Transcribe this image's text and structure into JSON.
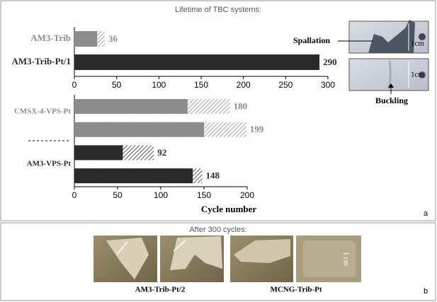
{
  "title": "Lifetime of TBC systems:",
  "panel_a": "a",
  "chart_data": [
    {
      "type": "bar",
      "orientation": "horizontal",
      "categories": [
        "AM3-Trib",
        "AM3-Trib-Pt/1"
      ],
      "colors": [
        "#8c8c8c",
        "#2b2b2b"
      ],
      "values": [
        36,
        290
      ],
      "solid_values": [
        27,
        290
      ],
      "xlim": [
        0,
        300
      ],
      "xticks": [
        0,
        50,
        100,
        150,
        200,
        250,
        300
      ]
    },
    {
      "type": "grouped_bar",
      "orientation": "horizontal",
      "groups": [
        {
          "label": "CMSX-4-VPS-Pt",
          "color": "#8c8c8c",
          "values": [
            180,
            199
          ],
          "solid_values": [
            131,
            150
          ]
        },
        {
          "label": "AM3-VPS-Pt",
          "color": "#2b2b2b",
          "values": [
            92,
            148
          ],
          "solid_values": [
            56,
            137
          ]
        }
      ],
      "xlim": [
        0,
        200
      ],
      "xticks": [
        0,
        50,
        100,
        150,
        200
      ],
      "xlabel": "Cycle number"
    }
  ],
  "photo_labels": {
    "spallation": "Spallation",
    "buckling": "Buckling",
    "scale": "1cm"
  },
  "panel_b": {
    "title": "After 300 cycles:",
    "labels": [
      "AM3-Trib-Pt/2",
      "MCNG-Trib-Pt"
    ],
    "scale": "1 cm",
    "letter": "b"
  }
}
